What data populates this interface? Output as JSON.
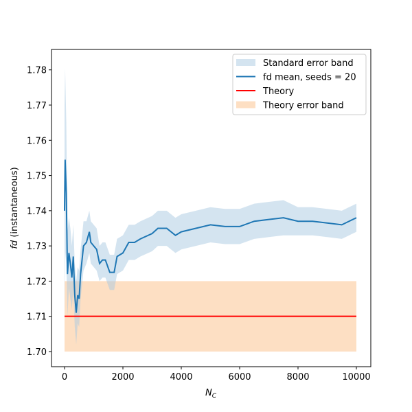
{
  "chart_data": {
    "type": "line",
    "title": "",
    "xlabel": "N_C",
    "ylabel": "fd (instantaneous)",
    "xlim": [
      -447,
      10494
    ],
    "ylim": [
      1.6957,
      1.7858
    ],
    "xticks": [
      0,
      2000,
      4000,
      6000,
      8000,
      10000
    ],
    "xtick_labels": [
      "0",
      "2000",
      "4000",
      "6000",
      "8000",
      "10000"
    ],
    "yticks": [
      1.7,
      1.71,
      1.72,
      1.73,
      1.74,
      1.75,
      1.76,
      1.77,
      1.78
    ],
    "ytick_labels": [
      "1.70",
      "1.71",
      "1.72",
      "1.73",
      "1.74",
      "1.75",
      "1.76",
      "1.77",
      "1.78"
    ],
    "legend_placement": "top-right",
    "legend": [
      "Standard error band",
      "fd mean, seeds = 20",
      "Theory",
      "Theory error band"
    ],
    "colors": {
      "mean": "#1f77b4",
      "band": "#a9c9e2",
      "theory": "#ff0000",
      "theory_band": "#fdd9b8"
    },
    "series": [
      {
        "name": "fd mean, seeds = 20",
        "x": [
          0,
          20,
          60,
          100,
          150,
          200,
          250,
          300,
          350,
          400,
          450,
          500,
          550,
          650,
          750,
          850,
          900,
          1000,
          1100,
          1200,
          1300,
          1400,
          1550,
          1700,
          1800,
          2000,
          2200,
          2400,
          2600,
          3000,
          3200,
          3500,
          3800,
          4000,
          4500,
          5000,
          5500,
          6000,
          6500,
          7000,
          7500,
          8000,
          8500,
          9000,
          9500,
          10000
        ],
        "y": [
          1.74,
          1.7545,
          1.745,
          1.722,
          1.728,
          1.725,
          1.721,
          1.727,
          1.716,
          1.711,
          1.716,
          1.715,
          1.722,
          1.73,
          1.731,
          1.734,
          1.731,
          1.73,
          1.729,
          1.725,
          1.726,
          1.726,
          1.7225,
          1.7225,
          1.727,
          1.728,
          1.731,
          1.731,
          1.732,
          1.7335,
          1.735,
          1.735,
          1.733,
          1.734,
          1.735,
          1.736,
          1.7355,
          1.7355,
          1.737,
          1.7375,
          1.738,
          1.737,
          1.737,
          1.7365,
          1.736,
          1.738
        ],
        "se": [
          0.03,
          0.026,
          0.02,
          0.012,
          0.01,
          0.01,
          0.009,
          0.009,
          0.009,
          0.009,
          0.008,
          0.008,
          0.007,
          0.007,
          0.006,
          0.006,
          0.006,
          0.006,
          0.006,
          0.005,
          0.005,
          0.005,
          0.005,
          0.005,
          0.005,
          0.005,
          0.005,
          0.005,
          0.005,
          0.005,
          0.005,
          0.005,
          0.005,
          0.005,
          0.005,
          0.005,
          0.005,
          0.005,
          0.005,
          0.005,
          0.005,
          0.004,
          0.004,
          0.004,
          0.004,
          0.004
        ]
      },
      {
        "name": "Theory",
        "x": [
          0,
          10000
        ],
        "y": [
          1.71,
          1.71
        ]
      },
      {
        "name": "Theory error band",
        "x": [
          0,
          10000
        ],
        "lower": 1.7,
        "upper": 1.72
      }
    ]
  }
}
